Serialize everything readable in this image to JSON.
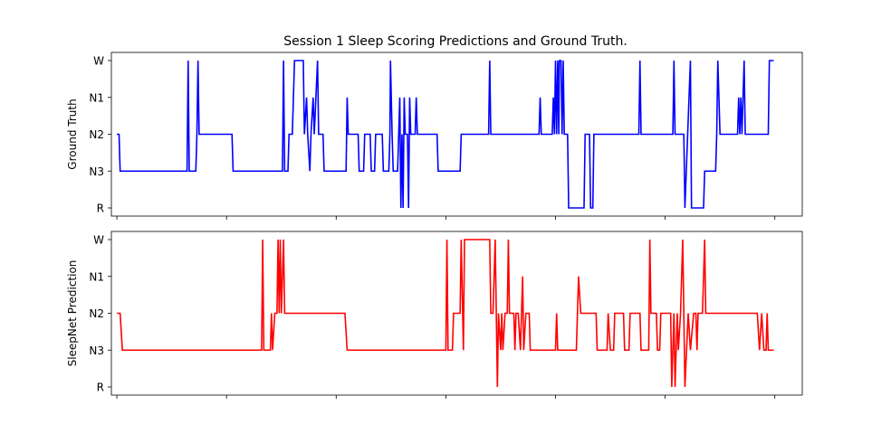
{
  "figure": {
    "title": "Session 1 Sleep Scoring Predictions and Ground Truth."
  },
  "chart_data": [
    {
      "type": "line",
      "panel": "top",
      "ylabel": "Ground Truth",
      "yticklabels": [
        "R",
        "N3",
        "N2",
        "N1",
        "W"
      ],
      "ylim": [
        0,
        4
      ],
      "xlim": [
        -0.5,
        62.5
      ],
      "x_ticks": [
        0,
        10,
        20,
        30,
        40,
        50,
        60
      ],
      "x_ticks_labeled": false,
      "color": "#0000ff",
      "series": [
        {
          "points": [
            [
              0,
              2
            ],
            [
              0.2,
              2
            ],
            [
              0.3,
              1
            ],
            [
              6.4,
              1
            ],
            [
              6.5,
              4
            ],
            [
              6.6,
              1
            ],
            [
              7.2,
              1
            ],
            [
              7.3,
              2
            ],
            [
              7.4,
              4
            ],
            [
              7.5,
              2
            ],
            [
              10.5,
              2
            ],
            [
              10.6,
              1
            ],
            [
              15.1,
              1
            ],
            [
              15.2,
              4
            ],
            [
              15.3,
              1
            ],
            [
              15.6,
              1
            ],
            [
              15.7,
              2
            ],
            [
              16.0,
              2
            ],
            [
              16.2,
              4
            ],
            [
              17.0,
              4
            ],
            [
              17.1,
              2
            ],
            [
              17.3,
              3
            ],
            [
              17.4,
              2
            ],
            [
              17.6,
              1
            ],
            [
              17.7,
              2
            ],
            [
              17.9,
              3
            ],
            [
              18.0,
              2
            ],
            [
              18.3,
              4
            ],
            [
              18.4,
              2
            ],
            [
              18.8,
              2
            ],
            [
              18.9,
              1
            ],
            [
              20.9,
              1
            ],
            [
              21.0,
              3
            ],
            [
              21.1,
              2
            ],
            [
              22.0,
              2
            ],
            [
              22.1,
              1
            ],
            [
              22.5,
              1
            ],
            [
              22.6,
              2
            ],
            [
              23.1,
              2
            ],
            [
              23.2,
              1
            ],
            [
              23.5,
              1
            ],
            [
              23.6,
              2
            ],
            [
              24.2,
              2
            ],
            [
              24.3,
              1
            ],
            [
              24.8,
              1
            ],
            [
              24.9,
              2
            ],
            [
              24.95,
              4
            ],
            [
              25.1,
              2
            ],
            [
              25.2,
              1
            ],
            [
              25.6,
              1
            ],
            [
              25.7,
              2
            ],
            [
              25.8,
              3
            ],
            [
              25.9,
              0
            ],
            [
              26.0,
              2
            ],
            [
              26.1,
              0
            ],
            [
              26.2,
              3
            ],
            [
              26.3,
              2
            ],
            [
              26.5,
              2
            ],
            [
              26.6,
              0
            ],
            [
              26.7,
              3
            ],
            [
              26.8,
              2
            ],
            [
              27.2,
              2
            ],
            [
              27.3,
              3
            ],
            [
              27.4,
              2
            ],
            [
              29.2,
              2
            ],
            [
              29.3,
              1
            ],
            [
              31.3,
              1
            ],
            [
              31.4,
              2
            ],
            [
              33.9,
              2
            ],
            [
              34.0,
              4
            ],
            [
              34.1,
              2
            ],
            [
              38.5,
              2
            ],
            [
              38.6,
              3
            ],
            [
              38.7,
              2
            ],
            [
              39.7,
              2
            ],
            [
              39.8,
              3
            ],
            [
              39.9,
              2
            ],
            [
              40.0,
              4
            ],
            [
              40.1,
              2
            ],
            [
              40.2,
              4
            ],
            [
              40.3,
              2
            ],
            [
              40.35,
              4
            ],
            [
              40.5,
              4
            ],
            [
              40.6,
              2
            ],
            [
              40.7,
              4
            ],
            [
              40.8,
              2
            ],
            [
              41.1,
              2
            ],
            [
              41.2,
              0
            ],
            [
              42.6,
              0
            ],
            [
              42.7,
              2
            ],
            [
              43.1,
              2
            ],
            [
              43.2,
              0
            ],
            [
              43.4,
              0
            ],
            [
              43.5,
              2
            ],
            [
              47.6,
              2
            ],
            [
              47.7,
              4
            ],
            [
              47.8,
              2
            ],
            [
              50.7,
              2
            ],
            [
              50.8,
              4
            ],
            [
              50.9,
              2
            ],
            [
              51.7,
              2
            ],
            [
              51.8,
              0
            ],
            [
              52.3,
              4
            ],
            [
              52.4,
              0
            ],
            [
              53.5,
              0
            ],
            [
              53.6,
              1
            ],
            [
              54.6,
              1
            ],
            [
              54.7,
              2
            ],
            [
              54.8,
              4
            ],
            [
              54.9,
              3
            ],
            [
              55.0,
              2
            ],
            [
              56.6,
              2
            ],
            [
              56.7,
              3
            ],
            [
              56.8,
              2
            ],
            [
              56.9,
              3
            ],
            [
              57.0,
              2
            ],
            [
              57.2,
              4
            ],
            [
              57.3,
              2
            ],
            [
              59.4,
              2
            ],
            [
              59.5,
              4
            ],
            [
              59.9,
              4
            ]
          ]
        }
      ]
    },
    {
      "type": "line",
      "panel": "bottom",
      "ylabel": "SleepNet Prediction",
      "yticklabels": [
        "R",
        "N3",
        "N2",
        "N1",
        "W"
      ],
      "ylim": [
        0,
        4
      ],
      "xlim": [
        -0.5,
        62.5
      ],
      "x_ticks": [
        0,
        10,
        20,
        30,
        40,
        50,
        60
      ],
      "x_ticks_labeled": false,
      "color": "#ff0000",
      "series": [
        {
          "points": [
            [
              0,
              2
            ],
            [
              0.3,
              2
            ],
            [
              0.5,
              1
            ],
            [
              12.8,
              1
            ],
            [
              13.2,
              1
            ],
            [
              13.3,
              4
            ],
            [
              13.4,
              1
            ],
            [
              14.0,
              1
            ],
            [
              14.1,
              2
            ],
            [
              14.2,
              1
            ],
            [
              14.4,
              2
            ],
            [
              14.6,
              2
            ],
            [
              14.7,
              4
            ],
            [
              14.8,
              2
            ],
            [
              14.9,
              4
            ],
            [
              15.0,
              2
            ],
            [
              15.2,
              4
            ],
            [
              15.3,
              2
            ],
            [
              20.8,
              2
            ],
            [
              21.0,
              1
            ],
            [
              30.0,
              1
            ],
            [
              30.1,
              4
            ],
            [
              30.2,
              1
            ],
            [
              30.6,
              1
            ],
            [
              30.7,
              2
            ],
            [
              31.3,
              2
            ],
            [
              31.4,
              4
            ],
            [
              31.6,
              1
            ],
            [
              31.7,
              4
            ],
            [
              34.0,
              4
            ],
            [
              34.1,
              2
            ],
            [
              34.3,
              2
            ],
            [
              34.5,
              4
            ],
            [
              34.6,
              2
            ],
            [
              34.7,
              0
            ],
            [
              34.8,
              2
            ],
            [
              35.0,
              1
            ],
            [
              35.1,
              2
            ],
            [
              35.2,
              1
            ],
            [
              35.4,
              2
            ],
            [
              35.6,
              2
            ],
            [
              35.7,
              4
            ],
            [
              35.8,
              2
            ],
            [
              36.2,
              2
            ],
            [
              36.3,
              1
            ],
            [
              36.4,
              2
            ],
            [
              36.6,
              2
            ],
            [
              36.8,
              1
            ],
            [
              37.0,
              3
            ],
            [
              37.1,
              1
            ],
            [
              37.3,
              2
            ],
            [
              37.6,
              2
            ],
            [
              37.7,
              1
            ],
            [
              40.0,
              1
            ],
            [
              40.1,
              2
            ],
            [
              40.2,
              1
            ],
            [
              41.9,
              1
            ],
            [
              42.0,
              2
            ],
            [
              42.1,
              3
            ],
            [
              42.3,
              2
            ],
            [
              43.7,
              2
            ],
            [
              43.8,
              1
            ],
            [
              44.7,
              1
            ],
            [
              44.8,
              2
            ],
            [
              45.0,
              1
            ],
            [
              45.3,
              1
            ],
            [
              45.4,
              2
            ],
            [
              46.2,
              2
            ],
            [
              46.3,
              1
            ],
            [
              46.7,
              1
            ],
            [
              46.8,
              2
            ],
            [
              47.7,
              2
            ],
            [
              47.8,
              1
            ],
            [
              48.5,
              1
            ],
            [
              48.6,
              4
            ],
            [
              48.7,
              2
            ],
            [
              49.2,
              2
            ],
            [
              49.3,
              1
            ],
            [
              49.5,
              1
            ],
            [
              49.6,
              2
            ],
            [
              50.5,
              2
            ],
            [
              50.6,
              0
            ],
            [
              50.8,
              2
            ],
            [
              50.9,
              0
            ],
            [
              51.1,
              2
            ],
            [
              51.2,
              1
            ],
            [
              51.4,
              2
            ],
            [
              51.6,
              4
            ],
            [
              51.7,
              2
            ],
            [
              51.8,
              0
            ],
            [
              52.1,
              2
            ],
            [
              52.3,
              1
            ],
            [
              52.6,
              2
            ],
            [
              52.8,
              2
            ],
            [
              52.9,
              1
            ],
            [
              53.0,
              2
            ],
            [
              53.4,
              2
            ],
            [
              53.6,
              4
            ],
            [
              53.7,
              2
            ],
            [
              58.4,
              2
            ],
            [
              58.6,
              1
            ],
            [
              58.8,
              2
            ],
            [
              59.0,
              1
            ],
            [
              59.2,
              1
            ],
            [
              59.3,
              2
            ],
            [
              59.4,
              1
            ],
            [
              59.9,
              1
            ]
          ]
        }
      ]
    }
  ]
}
